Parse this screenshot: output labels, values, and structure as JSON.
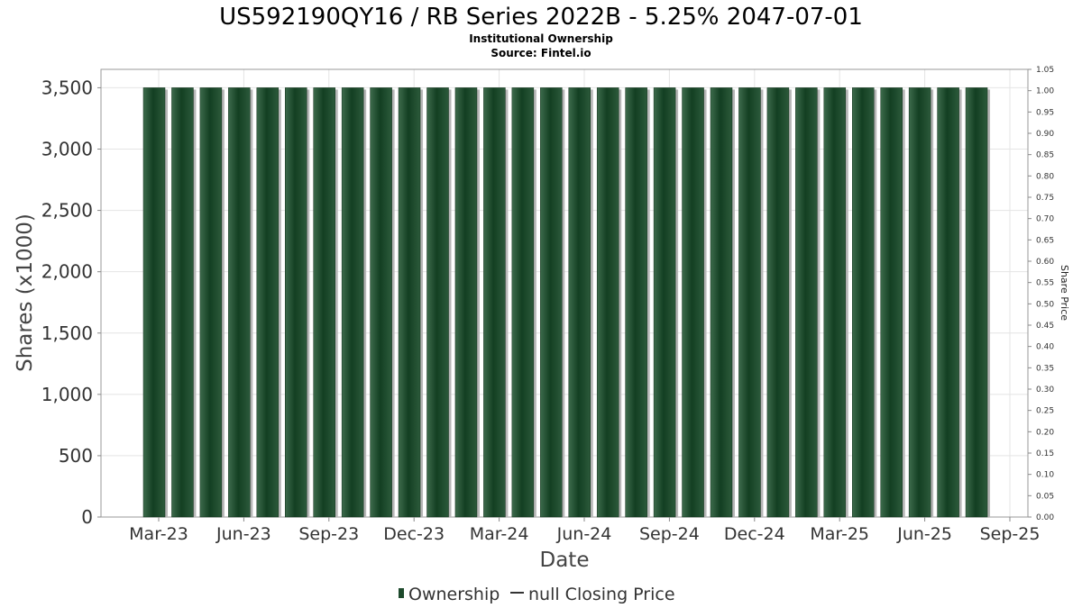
{
  "chart_data": {
    "type": "bar",
    "title": "US592190QY16 / RB Series 2022B - 5.25% 2047-07-01",
    "subtitle_lines": [
      "Institutional Ownership",
      "Source: Fintel.io"
    ],
    "xlabel": "Date",
    "ylabel": "Shares (x1000)",
    "y2label": "Share Price",
    "ylim": [
      0,
      3650
    ],
    "y2lim": [
      0,
      1.05
    ],
    "yticks": [
      "0",
      "500",
      "1,000",
      "1,500",
      "2,000",
      "2,500",
      "3,000",
      "3,500"
    ],
    "ytick_values": [
      0,
      500,
      1000,
      1500,
      2000,
      2500,
      3000,
      3500
    ],
    "y2ticks": [
      "0.00",
      "0.05",
      "0.10",
      "0.15",
      "0.20",
      "0.25",
      "0.30",
      "0.35",
      "0.40",
      "0.45",
      "0.50",
      "0.55",
      "0.60",
      "0.65",
      "0.70",
      "0.75",
      "0.80",
      "0.85",
      "0.90",
      "0.95",
      "1.00",
      "1.05"
    ],
    "y2tick_values": [
      0,
      0.05,
      0.1,
      0.15,
      0.2,
      0.25,
      0.3,
      0.35,
      0.4,
      0.45,
      0.5,
      0.55,
      0.6,
      0.65,
      0.7,
      0.75,
      0.8,
      0.85,
      0.9,
      0.95,
      1.0,
      1.05
    ],
    "xticks": [
      "Mar-23",
      "Jun-23",
      "Sep-23",
      "Dec-23",
      "Mar-24",
      "Jun-24",
      "Sep-24",
      "Dec-24",
      "Mar-25",
      "Jun-25",
      "Sep-25"
    ],
    "grid": true,
    "legend_position": "bottom-center",
    "series": [
      {
        "name": "Ownership",
        "color": "#1e4a2c",
        "values": [
          3500,
          3500,
          3500,
          3500,
          3500,
          3500,
          3500,
          3500,
          3500,
          3500,
          3500,
          3500,
          3500,
          3500,
          3500,
          3500,
          3500,
          3500,
          3500,
          3500,
          3500,
          3500,
          3500,
          3500,
          3500,
          3500,
          3500,
          3500,
          3500,
          3500
        ]
      }
    ],
    "legend": [
      {
        "label": "Ownership",
        "color": "#1e4a2c",
        "shape": "bar-icon"
      },
      {
        "label": "null Closing Price",
        "color": "#333333",
        "shape": "line-icon"
      }
    ]
  }
}
